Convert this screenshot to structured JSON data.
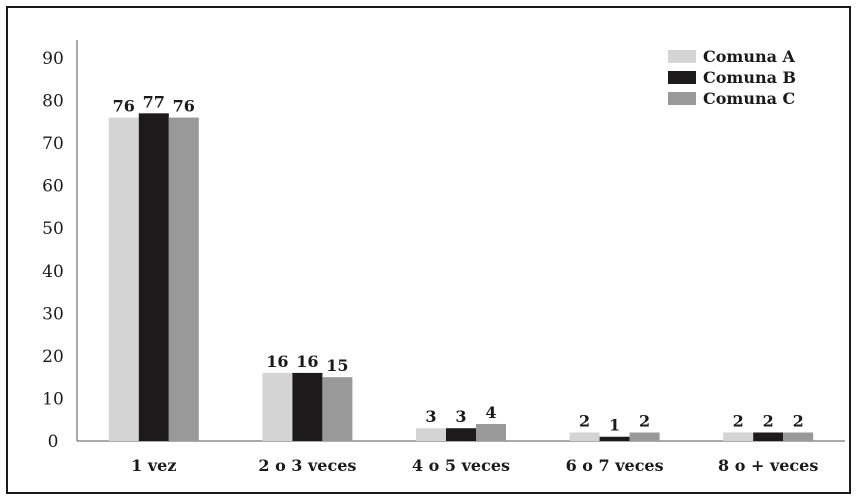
{
  "chart_data": {
    "type": "bar",
    "categories": [
      "1 vez",
      "2 o 3 veces",
      "4 o 5 veces",
      "6 o 7 veces",
      "8 o + veces"
    ],
    "series": [
      {
        "name": "Comuna A",
        "values": [
          76,
          16,
          3,
          2,
          2
        ],
        "labels": [
          "76",
          "16",
          "3",
          "2",
          "2"
        ],
        "color": "#d4d4d4"
      },
      {
        "name": "Comuna B",
        "values": [
          77,
          16,
          3,
          1,
          2
        ],
        "labels": [
          "77",
          "16",
          "3",
          "1",
          "2"
        ],
        "color": "#1c1a1b"
      },
      {
        "name": "Comuna C",
        "values": [
          76,
          15,
          4,
          2,
          2
        ],
        "labels": [
          "76",
          "15",
          "4",
          "2",
          "2"
        ],
        "color": "#999999"
      }
    ],
    "yticks": [
      "0",
      "10",
      "20",
      "30",
      "40",
      "50",
      "60",
      "70",
      "80",
      "90"
    ],
    "ylim": [
      0,
      90
    ],
    "legend_position": "top-right",
    "grid": false
  }
}
